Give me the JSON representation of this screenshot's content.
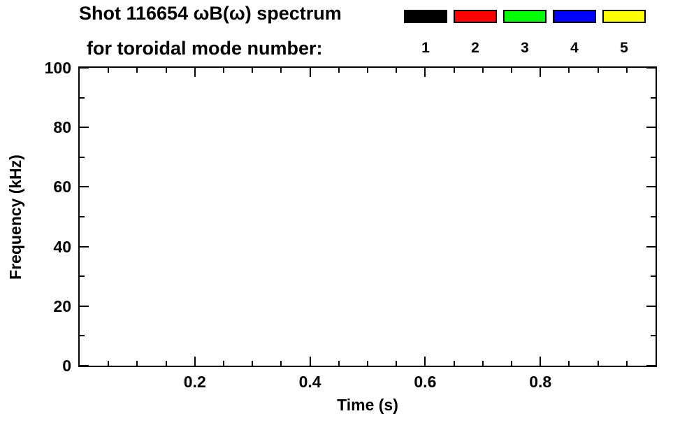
{
  "header": {
    "title": "Shot 116654 ωB(ω) spectrum",
    "subtitle": "for toroidal mode number:"
  },
  "chart_data": {
    "type": "scatter",
    "title": "Shot 116654 ωB(ω) spectrum for toroidal mode number:",
    "xlabel": "Time (s)",
    "ylabel": "Frequency (kHz)",
    "xlim": [
      0,
      1.0
    ],
    "ylim": [
      0,
      100
    ],
    "x_major_ticks": [
      0.2,
      0.4,
      0.6,
      0.8
    ],
    "x_minor_step": 0.05,
    "y_major_ticks": [
      0,
      20,
      40,
      60,
      80,
      100
    ],
    "y_minor_step": 10,
    "grid": false,
    "legend_position": "top",
    "legend": [
      {
        "label": "1",
        "color": "#000000"
      },
      {
        "label": "2",
        "color": "#ff0000"
      },
      {
        "label": "3",
        "color": "#00ff00"
      },
      {
        "label": "4",
        "color": "#0000ff"
      },
      {
        "label": "5",
        "color": "#ffff00"
      }
    ],
    "series": []
  }
}
